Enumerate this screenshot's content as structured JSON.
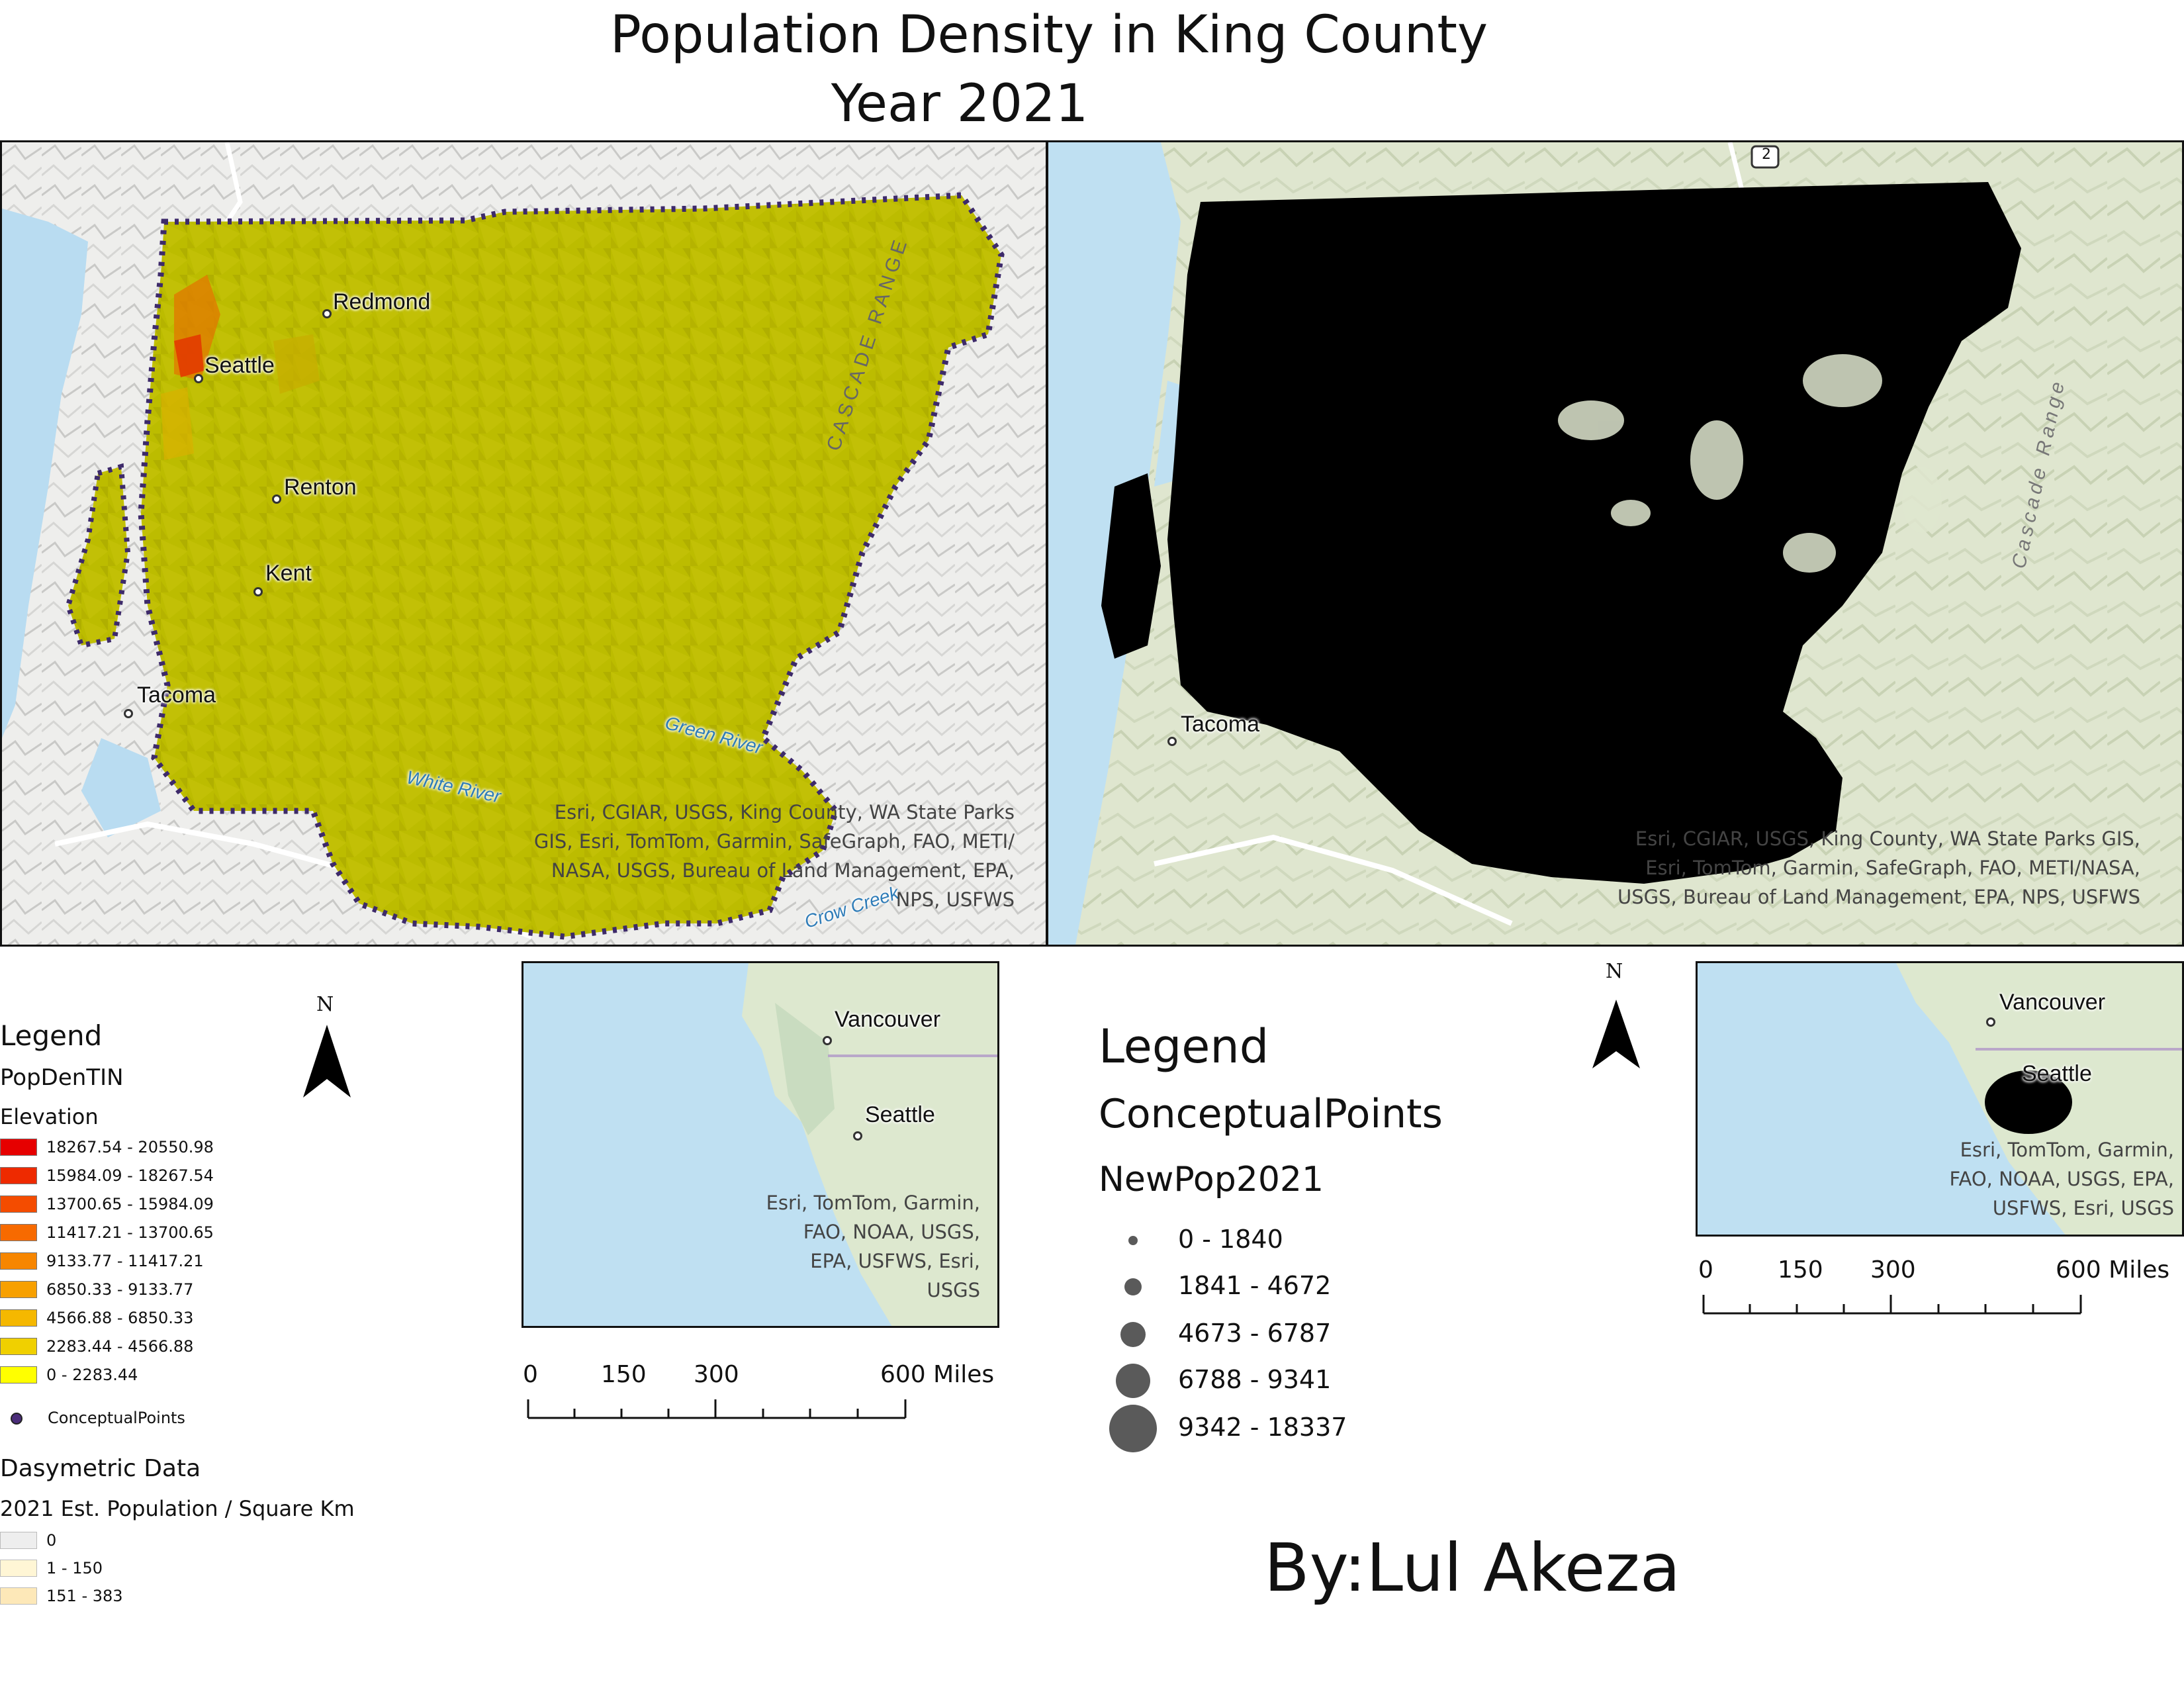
{
  "title": {
    "line1": "Population Density in King County",
    "line2": "Year 2021"
  },
  "left_map": {
    "places": [
      "Redmond",
      "Seattle",
      "Renton",
      "Kent",
      "Tacoma"
    ],
    "rivers": [
      "Green River",
      "White River",
      "Crow Creek"
    ],
    "range_label": "CASCADE RANGE",
    "credit_lines": [
      "Esri, CGIAR, USGS, King County, WA State Parks",
      "GIS, Esri, TomTom, Garmin, SafeGraph, FAO, METI/",
      "NASA, USGS, Bureau of Land Management, EPA,",
      "NPS, USFWS"
    ],
    "fill_color": "#bcbc00"
  },
  "right_map": {
    "places": [
      "Tacoma"
    ],
    "range_label": "Cascade Range",
    "credit_lines": [
      "Esri, CGIAR, USGS, King County, WA State Parks GIS,",
      "Esri, TomTom, Garmin, SafeGraph, FAO, METI/NASA,",
      "USGS, Bureau of Land Management, EPA, NPS, USFWS"
    ],
    "highway_shield": "2"
  },
  "legend_left": {
    "heading": "Legend",
    "layer": "PopDenTIN",
    "field": "Elevation",
    "classes": [
      {
        "label": "18267.54 - 20550.98",
        "color": "#e60000"
      },
      {
        "label": "15984.09 - 18267.54",
        "color": "#ee2a00"
      },
      {
        "label": "13700.65 - 15984.09",
        "color": "#f44c00"
      },
      {
        "label": "11417.21 - 13700.65",
        "color": "#f76a00"
      },
      {
        "label": "9133.77 - 11417.21",
        "color": "#f78600"
      },
      {
        "label": "6850.33 - 9133.77",
        "color": "#f7a000"
      },
      {
        "label": "4566.88 - 6850.33",
        "color": "#f5b800"
      },
      {
        "label": "2283.44 - 4566.88",
        "color": "#f0d000"
      },
      {
        "label": "0 - 2283.44",
        "color": "#ffff00"
      }
    ],
    "points_label": "ConceptualPoints",
    "points_color": "#4b2d7a",
    "dasy_heading": "Dasymetric Data",
    "dasy_field": "2021 Est. Population / Square Km",
    "dasy_classes": [
      {
        "label": "0",
        "color": "#eeeeee"
      },
      {
        "label": "1 - 150",
        "color": "#fff6d5"
      },
      {
        "label": "151 - 383",
        "color": "#fde8b8"
      }
    ]
  },
  "legend_right": {
    "heading": "Legend",
    "layer": "ConceptualPoints",
    "field": "NewPop2021",
    "classes": [
      {
        "label": "0 - 1840",
        "size": 14
      },
      {
        "label": "1841 - 4672",
        "size": 26
      },
      {
        "label": "4673 - 6787",
        "size": 38
      },
      {
        "label": "6788 - 9341",
        "size": 52
      },
      {
        "label": "9342 - 18337",
        "size": 72
      }
    ]
  },
  "north": {
    "label": "N"
  },
  "inset1": {
    "places": [
      "Vancouver",
      "Seattle"
    ],
    "credit_lines": [
      "Esri, TomTom, Garmin,",
      "FAO, NOAA, USGS,",
      "EPA, USFWS, Esri,",
      "USGS"
    ]
  },
  "inset2": {
    "places": [
      "Vancouver",
      "Seattle"
    ],
    "credit_lines": [
      "Esri, TomTom, Garmin,",
      "FAO, NOAA, USGS, EPA,",
      "USFWS, Esri, USGS"
    ]
  },
  "scale": {
    "ticks": [
      "0",
      "150",
      "300",
      "600 Miles"
    ]
  },
  "author": "By:Lul Akeza"
}
